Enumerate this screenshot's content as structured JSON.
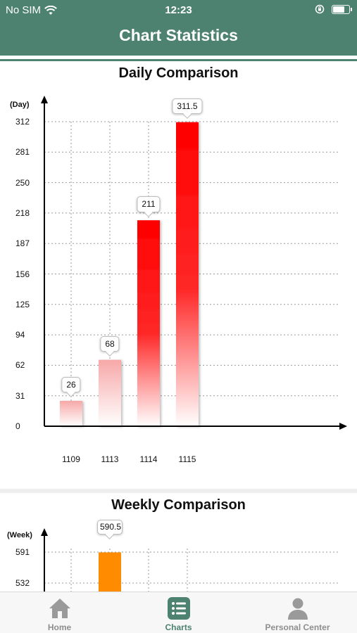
{
  "status_bar": {
    "carrier": "No SIM",
    "time": "12:23",
    "battery_level": 0.8,
    "icons": [
      "wifi-icon",
      "orientation-lock-icon",
      "battery-icon"
    ]
  },
  "header": {
    "title": "Chart Statistics",
    "background": "#4e8270"
  },
  "daily": {
    "title": "Daily Comparison",
    "y_unit": "(Day)",
    "yticks": [
      "312",
      "281",
      "250",
      "218",
      "187",
      "156",
      "125",
      "94",
      "62",
      "31",
      "0"
    ],
    "labels": [
      "26",
      "68",
      "211",
      "311.5"
    ]
  },
  "weekly": {
    "title": "Weekly Comparison",
    "y_unit": "(Week)",
    "yticks": [
      "591",
      "532"
    ],
    "labels": [
      "590.5"
    ]
  },
  "chart_data": [
    {
      "type": "bar",
      "title": "Daily Comparison",
      "ylabel": "(Day)",
      "categories": [
        "1109",
        "1113",
        "1114",
        "1115"
      ],
      "values": [
        26,
        68,
        211,
        311.5
      ],
      "ylim": [
        0,
        312
      ],
      "grid": true,
      "bar_color": "#ff0000"
    },
    {
      "type": "bar",
      "title": "Weekly Comparison",
      "ylabel": "(Week)",
      "categories": [
        ""
      ],
      "values": [
        590.5
      ],
      "ylim_visible": [
        532,
        591
      ],
      "grid": true,
      "bar_color": "#ff8c00"
    }
  ],
  "tabbar": {
    "tabs": [
      {
        "label": "Home",
        "icon": "home-icon",
        "active": false
      },
      {
        "label": "Charts",
        "icon": "charts-icon",
        "active": true
      },
      {
        "label": "Personal Center",
        "icon": "person-icon",
        "active": false
      }
    ],
    "active_color": "#4e8270",
    "inactive_color": "#8e8e8e"
  }
}
